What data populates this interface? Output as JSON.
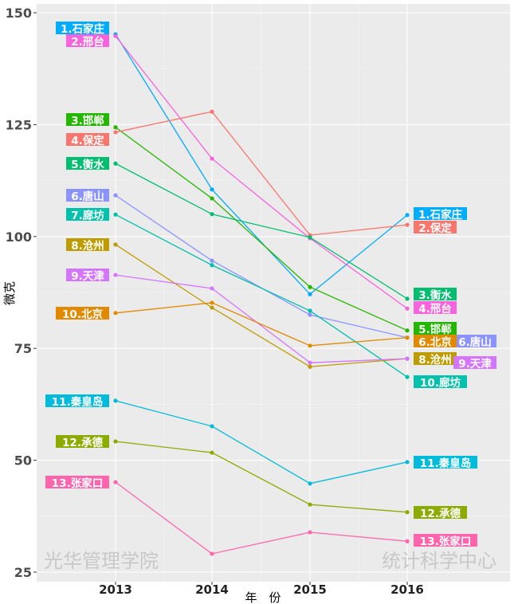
{
  "chart_data": {
    "type": "line",
    "xlabel": "年　份",
    "ylabel": "微克",
    "x": [
      2013,
      2014,
      2015,
      2016
    ],
    "x_tick_labels": [
      "2013",
      "2014",
      "2015",
      "2016"
    ],
    "ylim": [
      24,
      152
    ],
    "y_ticks": [
      25,
      50,
      75,
      100,
      125,
      150
    ],
    "grid": true,
    "legend": "none",
    "watermarks": [
      "光华管理学院",
      "统计科学中心"
    ],
    "series": [
      {
        "name": "石家庄",
        "color": "#00ACFC",
        "values": [
          145.2,
          110.5,
          87.1,
          104.8
        ],
        "left_label": "1.石家庄",
        "right_label": "1.石家庄"
      },
      {
        "name": "邢台",
        "color": "#F962DD",
        "values": [
          144.8,
          117.4,
          99.6,
          83.9
        ],
        "left_label": "2.邢台",
        "right_label": "4.邢台"
      },
      {
        "name": "邯郸",
        "color": "#24B700",
        "values": [
          124.4,
          108.5,
          88.7,
          79.0
        ],
        "left_label": "3.邯郸",
        "right_label": "5.邯郸"
      },
      {
        "name": "保定",
        "color": "#F8766D",
        "values": [
          123.3,
          127.9,
          100.3,
          102.6
        ],
        "left_label": "4.保定",
        "right_label": "2.保定"
      },
      {
        "name": "衡水",
        "color": "#00BE70",
        "values": [
          116.3,
          105.0,
          99.8,
          86.1
        ],
        "left_label": "5.衡水",
        "right_label": "3.衡水"
      },
      {
        "name": "唐山",
        "color": "#8B93FF",
        "values": [
          109.2,
          94.6,
          82.5,
          77.4
        ],
        "left_label": "6.唐山",
        "right_label": "6.唐山"
      },
      {
        "name": "廊坊",
        "color": "#00C1AB",
        "values": [
          104.9,
          93.6,
          83.4,
          68.6
        ],
        "left_label": "7.廊坊",
        "right_label": "10.廊坊"
      },
      {
        "name": "沧州",
        "color": "#BE9C00",
        "values": [
          98.2,
          84.1,
          70.9,
          72.7
        ],
        "left_label": "8.沧州",
        "right_label": "8.沧州"
      },
      {
        "name": "天津",
        "color": "#D575FE",
        "values": [
          91.4,
          88.4,
          71.8,
          72.7
        ],
        "left_label": "9.天津",
        "right_label": "9.天津"
      },
      {
        "name": "北京",
        "color": "#E18A00",
        "values": [
          82.9,
          85.2,
          75.6,
          77.4
        ],
        "left_label": "10.北京",
        "right_label": "6.北京"
      },
      {
        "name": "秦皇岛",
        "color": "#00BBDA",
        "values": [
          63.3,
          57.6,
          44.8,
          49.6
        ],
        "left_label": "11.秦皇岛",
        "right_label": "11.秦皇岛"
      },
      {
        "name": "承德",
        "color": "#8CAB00",
        "values": [
          54.2,
          51.7,
          40.1,
          38.4
        ],
        "left_label": "12.承德",
        "right_label": "12.承德"
      },
      {
        "name": "张家口",
        "color": "#FF65AC",
        "values": [
          45.1,
          29.1,
          33.9,
          31.9
        ],
        "left_label": "13.张家口",
        "right_label": "13.张家口"
      }
    ]
  }
}
